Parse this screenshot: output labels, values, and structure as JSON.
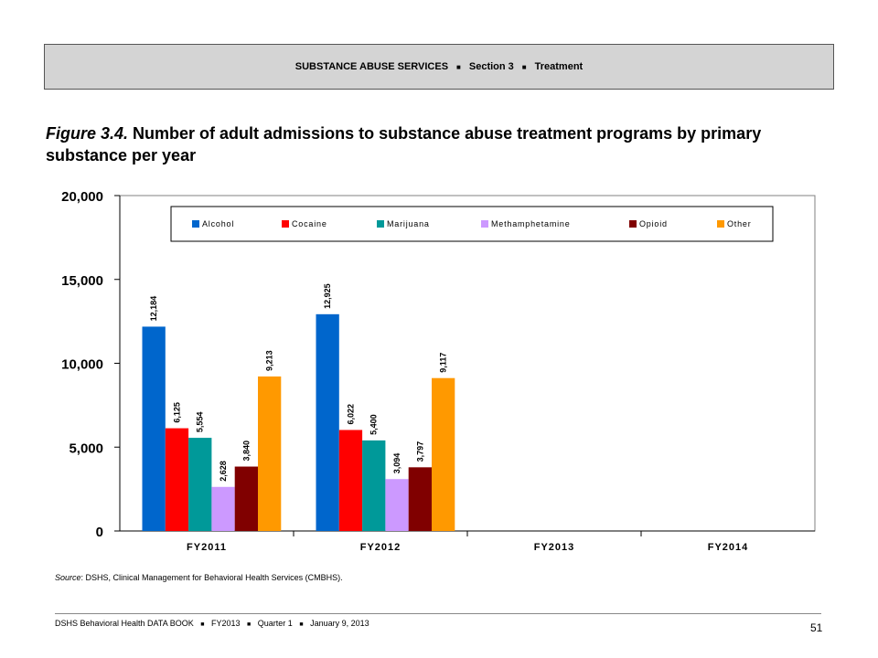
{
  "header": {
    "section": "SUBSTANCE ABUSE SERVICES",
    "part": "Section 3",
    "topic": "Treatment",
    "separator": "■"
  },
  "figure": {
    "number": "Figure 3.4.",
    "title": "Number of adult admissions to substance abuse treatment programs by primary substance per year"
  },
  "chart_data": {
    "type": "bar",
    "categories": [
      "FY2011",
      "FY2012",
      "FY2013",
      "FY2014"
    ],
    "series": [
      {
        "name": "Alcohol",
        "color": "#0066cc",
        "values": [
          12184,
          12925,
          null,
          null
        ],
        "labels": [
          "12,184",
          "12,925",
          "",
          ""
        ]
      },
      {
        "name": "Cocaine",
        "color": "#ff0000",
        "values": [
          6125,
          6022,
          null,
          null
        ],
        "labels": [
          "6,125",
          "6,022",
          "",
          ""
        ]
      },
      {
        "name": "Marijuana",
        "color": "#009999",
        "values": [
          5554,
          5400,
          null,
          null
        ],
        "labels": [
          "5,554",
          "5,400",
          "",
          ""
        ]
      },
      {
        "name": "Methamphetamine",
        "color": "#cc99ff",
        "values": [
          2628,
          3094,
          null,
          null
        ],
        "labels": [
          "2,628",
          "3,094",
          "",
          ""
        ]
      },
      {
        "name": "Opioid",
        "color": "#800000",
        "values": [
          3840,
          3797,
          null,
          null
        ],
        "labels": [
          "3,840",
          "3,797",
          "",
          ""
        ]
      },
      {
        "name": "Other",
        "color": "#ff9900",
        "values": [
          9213,
          9117,
          null,
          null
        ],
        "labels": [
          "9,213",
          "9,117",
          "",
          ""
        ]
      }
    ],
    "yticks": [
      "0",
      "5,000",
      "10,000",
      "15,000",
      "20,000"
    ],
    "ylim": [
      0,
      20000
    ],
    "legend_position": "top",
    "grid": false
  },
  "source": {
    "label": "Source",
    "text": ": DSHS, Clinical Management for Behavioral Health Services (CMBHS)."
  },
  "footer": {
    "publication": "DSHS Behavioral Health DATA BOOK",
    "year": "FY2013",
    "quarter": "Quarter 1",
    "date": "January 9, 2013",
    "separator": "■",
    "page": "51"
  }
}
